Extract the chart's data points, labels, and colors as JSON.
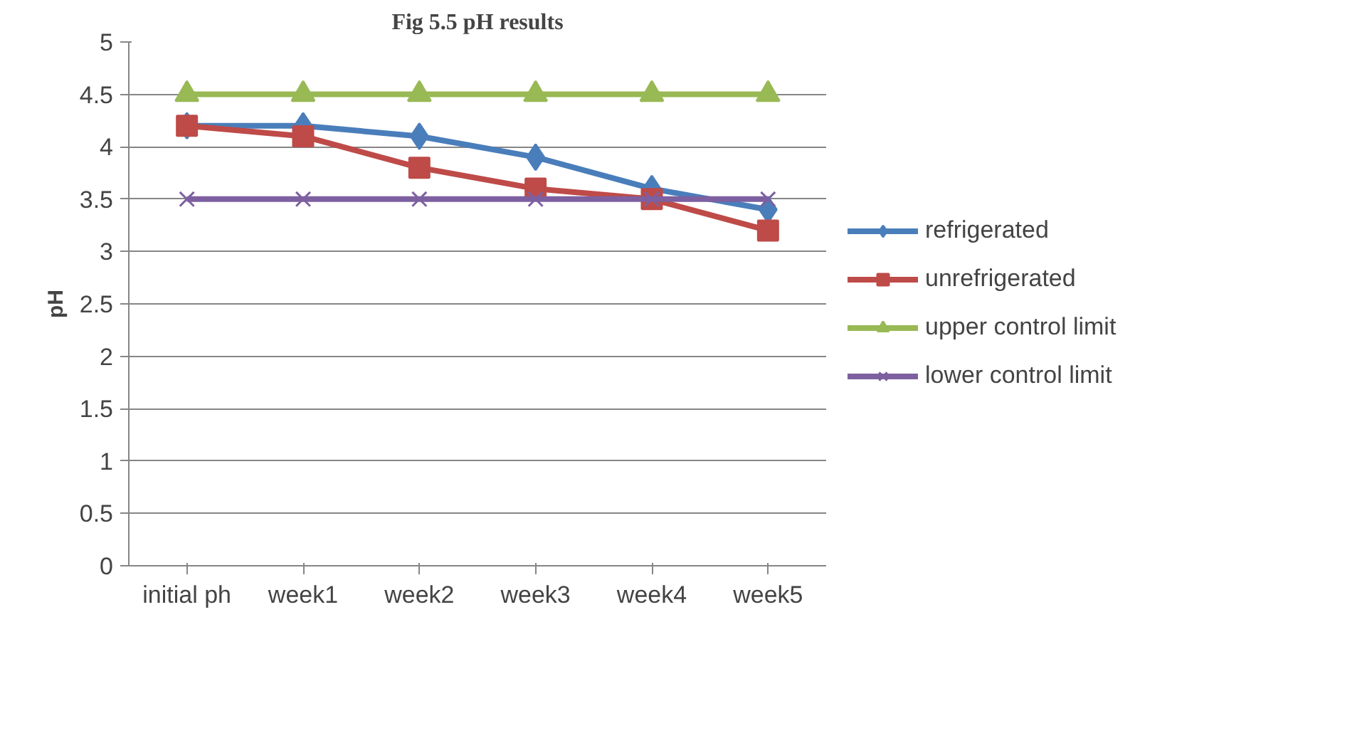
{
  "chart_data": {
    "type": "line",
    "title": "Fig 5.5 pH results",
    "ylabel": "pH",
    "categories": [
      "initial ph",
      "week1",
      "week2",
      "week3",
      "week4",
      "week5"
    ],
    "series": [
      {
        "name": "refrigerated",
        "color": "#4a7ebb",
        "marker": "diamond",
        "values": [
          4.2,
          4.2,
          4.1,
          3.9,
          3.6,
          3.4
        ]
      },
      {
        "name": "unrefrigerated",
        "color": "#be4b48",
        "marker": "square",
        "values": [
          4.2,
          4.1,
          3.8,
          3.6,
          3.5,
          3.2
        ]
      },
      {
        "name": "upper control limit",
        "color": "#98b954",
        "marker": "triangle",
        "values": [
          4.5,
          4.5,
          4.5,
          4.5,
          4.5,
          4.5
        ]
      },
      {
        "name": "lower control limit",
        "color": "#7d60a0",
        "marker": "cross",
        "values": [
          3.5,
          3.5,
          3.5,
          3.5,
          3.5,
          3.5
        ]
      }
    ],
    "ylim": [
      0,
      5
    ],
    "yticks": [
      0,
      0.5,
      1,
      1.5,
      2,
      2.5,
      3,
      3.5,
      4,
      4.5,
      5
    ],
    "grid": "y",
    "legend": "right",
    "line_style": "solid"
  }
}
